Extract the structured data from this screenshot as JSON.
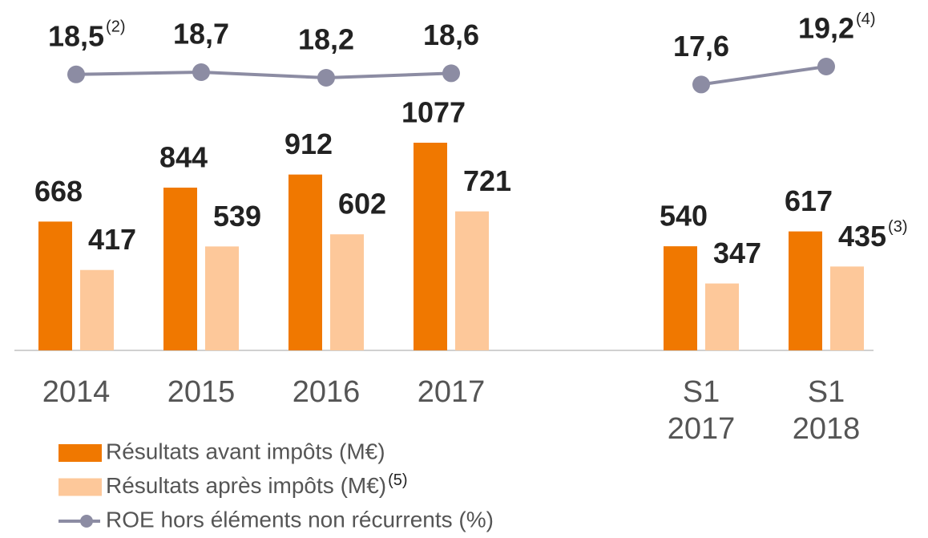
{
  "chart_data": {
    "type": "bar",
    "categories": [
      "2014",
      "2015",
      "2016",
      "2017",
      null,
      "S1 2017",
      "S1 2018"
    ],
    "series": [
      {
        "name": "Résultats avant impôts (M€)",
        "color": "#f07800",
        "values": [
          668,
          844,
          912,
          1077,
          null,
          540,
          617
        ]
      },
      {
        "name": "Résultats après impôts (M€)",
        "note": "(5)",
        "color": "#fdc89a",
        "values": [
          417,
          539,
          602,
          721,
          null,
          347,
          435
        ],
        "value_notes": [
          null,
          null,
          null,
          null,
          null,
          null,
          "(3)"
        ]
      },
      {
        "name": "ROE hors éléments non récurrents (%)",
        "type": "line",
        "color": "#8c8ca3",
        "values": [
          18.5,
          18.7,
          18.2,
          18.6,
          null,
          17.6,
          19.2
        ],
        "value_labels": [
          "18,5",
          "18,7",
          "18,2",
          "18,6",
          null,
          "17,6",
          "19,2"
        ],
        "value_notes": [
          "(2)",
          null,
          null,
          null,
          null,
          null,
          "(4)"
        ]
      }
    ]
  }
}
